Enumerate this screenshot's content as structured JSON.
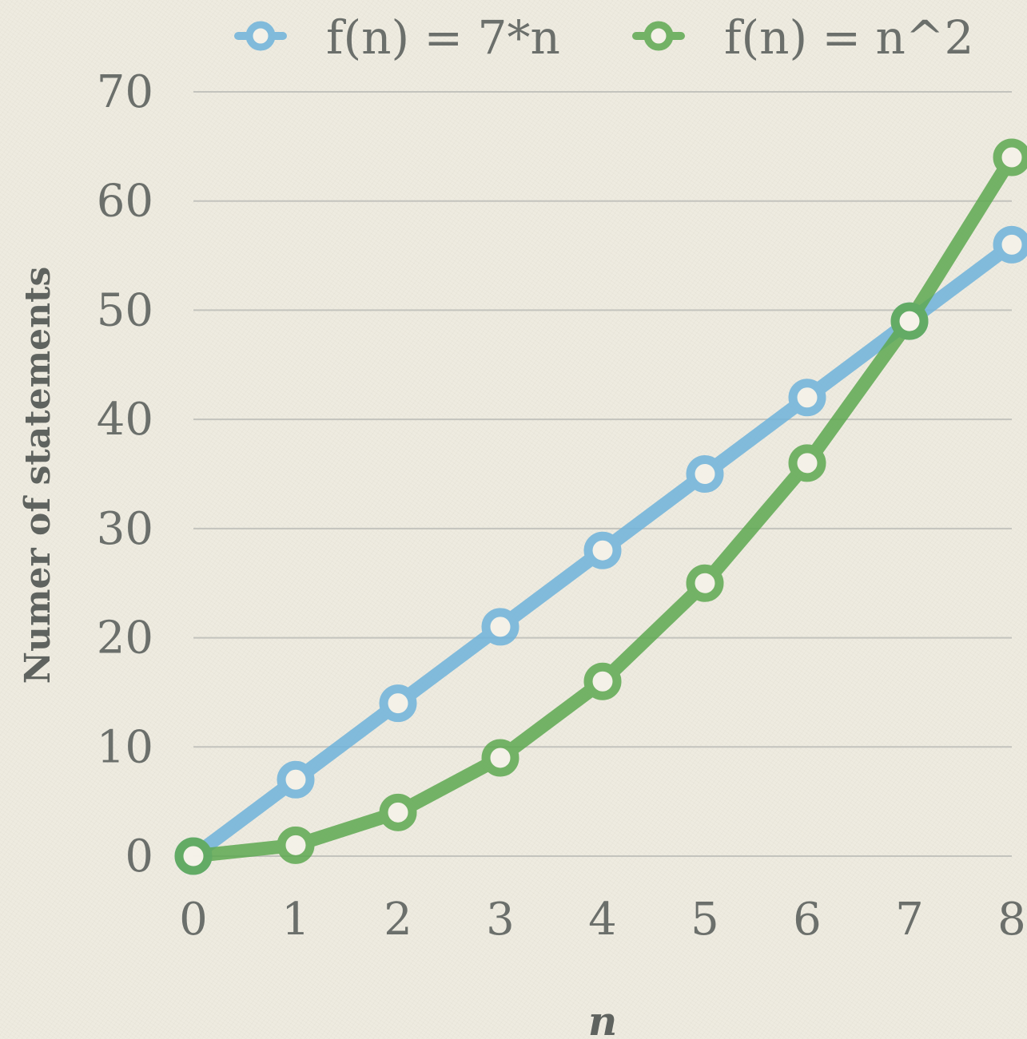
{
  "chart_data": {
    "type": "line",
    "title": "",
    "xlabel": "n",
    "ylabel": "Numer of statements",
    "x": [
      0,
      1,
      2,
      3,
      4,
      5,
      6,
      7,
      8
    ],
    "xlim": [
      0,
      8
    ],
    "ylim": [
      0,
      70
    ],
    "y_ticks": [
      0,
      10,
      20,
      30,
      40,
      50,
      60,
      70
    ],
    "x_ticks": [
      0,
      1,
      2,
      3,
      4,
      5,
      6,
      7,
      8
    ],
    "grid": "horizontal",
    "legend_position": "top",
    "series": [
      {
        "name": "f(n) = 7*n",
        "color": "#6fb3db",
        "values": [
          0,
          7,
          14,
          21,
          28,
          35,
          42,
          49,
          56
        ]
      },
      {
        "name": "f(n) = n^2",
        "color": "#5ea951",
        "values": [
          0,
          1,
          4,
          9,
          16,
          25,
          36,
          49,
          64
        ]
      }
    ]
  }
}
